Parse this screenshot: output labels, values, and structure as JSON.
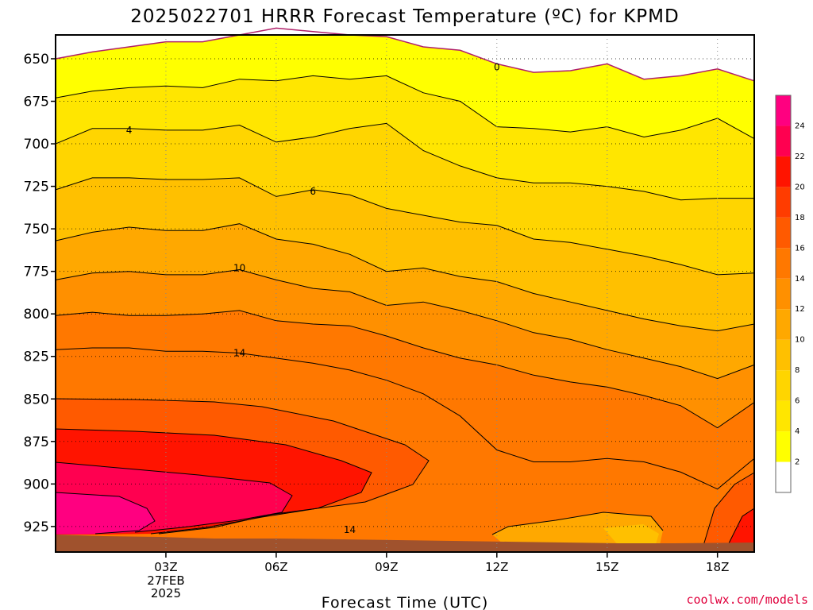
{
  "chart_data": {
    "type": "heatmap",
    "subtype": "filled-contour",
    "title": "2025022701 HRRR Forecast Temperature (ºC) for KPMD",
    "xlabel": "Forecast Time (UTC)",
    "ylabel": "",
    "x_axis": {
      "range": [
        0,
        19
      ],
      "ticks": [
        {
          "x": 3,
          "label": "03Z"
        },
        {
          "x": 6,
          "label": "06Z"
        },
        {
          "x": 9,
          "label": "09Z"
        },
        {
          "x": 12,
          "label": "12Z"
        },
        {
          "x": 15,
          "label": "15Z"
        },
        {
          "x": 18,
          "label": "18Z"
        }
      ],
      "date_lines": [
        "27FEB",
        "2025"
      ]
    },
    "y_axis": {
      "range": [
        636,
        940
      ],
      "inverted": true,
      "ticks": [
        650,
        675,
        700,
        725,
        750,
        775,
        800,
        825,
        850,
        875,
        900,
        925
      ]
    },
    "grid": true,
    "colorbar": {
      "placement": "right",
      "levels": [
        2,
        4,
        6,
        8,
        10,
        12,
        14,
        16,
        18,
        20,
        22,
        24
      ],
      "labels": [
        "2",
        "4",
        "6",
        "8",
        "10",
        "12",
        "14",
        "16",
        "18",
        "20",
        "22",
        "24"
      ],
      "colors": [
        "#ffffff",
        "#ffff00",
        "#ffe600",
        "#ffd500",
        "#ffc000",
        "#ffa800",
        "#ff9000",
        "#ff7800",
        "#ff5a00",
        "#ff3c00",
        "#ff1400",
        "#ff0050",
        "#ff0080"
      ]
    },
    "contour_x": [
      0,
      1,
      2,
      3,
      4,
      5,
      6,
      7,
      8,
      9,
      10,
      11,
      12,
      13,
      14,
      15,
      16,
      17,
      18,
      19
    ],
    "isotherms": [
      {
        "value": 0,
        "label": "0",
        "p": [
          650,
          646,
          643,
          640,
          640,
          636,
          632,
          634,
          636,
          637,
          643,
          645,
          653,
          658,
          657,
          653,
          662,
          660,
          656,
          663
        ]
      },
      {
        "value": 2,
        "label": "",
        "p": [
          673,
          669,
          667,
          666,
          667,
          662,
          663,
          660,
          662,
          660,
          670,
          675,
          690,
          691,
          693,
          690,
          696,
          692,
          685,
          697
        ]
      },
      {
        "value": 4,
        "label": "4",
        "p": [
          700,
          691,
          691,
          692,
          692,
          689,
          699,
          696,
          691,
          688,
          704,
          713,
          720,
          723,
          723,
          725,
          728,
          733,
          732,
          732
        ]
      },
      {
        "value": 6,
        "label": "6",
        "p": [
          727,
          720,
          720,
          721,
          721,
          720,
          731,
          727,
          730,
          738,
          742,
          746,
          748,
          756,
          758,
          762,
          766,
          771,
          777,
          776
        ]
      },
      {
        "value": 8,
        "label": "8",
        "p": [
          757,
          752,
          749,
          751,
          751,
          747,
          756,
          759,
          765,
          775,
          773,
          778,
          781,
          788,
          793,
          798,
          803,
          807,
          810,
          806
        ]
      },
      {
        "value": 10,
        "label": "10",
        "p": [
          780,
          776,
          775,
          777,
          777,
          774,
          780,
          785,
          787,
          795,
          793,
          798,
          804,
          811,
          815,
          821,
          826,
          831,
          838,
          830
        ]
      },
      {
        "value": 12,
        "label": "12",
        "p": [
          801,
          799,
          801,
          801,
          800,
          798,
          804,
          806,
          807,
          813,
          820,
          826,
          830,
          836,
          840,
          843,
          848,
          854,
          867,
          852
        ]
      },
      {
        "value": 14,
        "label": "14",
        "p": [
          821,
          820,
          820,
          822,
          822,
          823,
          826,
          829,
          833,
          839,
          847,
          860,
          880,
          887,
          887,
          885,
          887,
          893,
          903,
          885
        ]
      }
    ],
    "contour_labels": [
      {
        "x": 2.0,
        "p": 692,
        "text": "4"
      },
      {
        "x": 7.0,
        "p": 728,
        "text": "6"
      },
      {
        "x": 5.0,
        "p": 773,
        "text": "10"
      },
      {
        "x": 5.0,
        "p": 823,
        "text": "14"
      },
      {
        "x": 8.0,
        "p": 927,
        "text": "14"
      },
      {
        "x": 12.0,
        "p": 655,
        "text": "0"
      }
    ]
  },
  "credit": "coolwx.com/models"
}
